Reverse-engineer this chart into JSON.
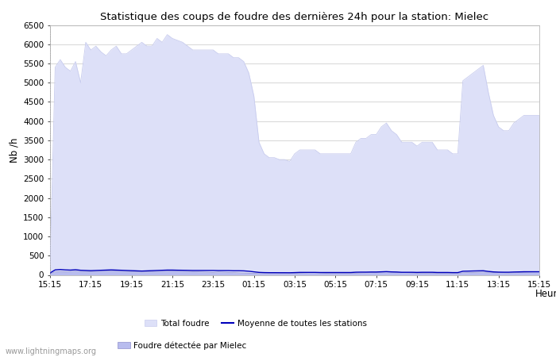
{
  "title": "Statistique des coups de foudre des dernières 24h pour la station: Mielec",
  "xlabel": "Heure",
  "ylabel": "Nb /h",
  "ylim": [
    0,
    6500
  ],
  "yticks": [
    0,
    500,
    1000,
    1500,
    2000,
    2500,
    3000,
    3500,
    4000,
    4500,
    5000,
    5500,
    6000,
    6500
  ],
  "xtick_labels": [
    "15:15",
    "17:15",
    "19:15",
    "21:15",
    "23:15",
    "01:15",
    "03:15",
    "05:15",
    "07:15",
    "09:15",
    "11:15",
    "13:15",
    "15:15"
  ],
  "bg_color": "#ffffff",
  "plot_bg_color": "#ffffff",
  "grid_color": "#d0d0d0",
  "total_foudre_color": "#dde0f8",
  "total_foudre_edge": "#c8ccee",
  "foudre_mielec_color": "#b8bcee",
  "foudre_mielec_edge": "#9090cc",
  "moyenne_color": "#0000bb",
  "watermark": "www.lightningmaps.org",
  "total_foudre": [
    200,
    5400,
    5600,
    5400,
    5300,
    5550,
    5000,
    6050,
    5850,
    5950,
    5800,
    5700,
    5850,
    5950,
    5750,
    5750,
    5850,
    5950,
    6050,
    5950,
    5950,
    6150,
    6050,
    6250,
    6150,
    6100,
    6050,
    5950,
    5850,
    5850,
    5850,
    5850,
    5850,
    5750,
    5750,
    5750,
    5650,
    5650,
    5550,
    5250,
    4650,
    3450,
    3150,
    3050,
    3050,
    3000,
    3000,
    2950,
    3150,
    3250,
    3250,
    3250,
    3250,
    3150,
    3150,
    3150,
    3150,
    3150,
    3150,
    3150,
    3450,
    3550,
    3550,
    3650,
    3650,
    3850,
    3950,
    3750,
    3650,
    3450,
    3450,
    3450,
    3350,
    3450,
    3450,
    3450,
    3250,
    3250,
    3250,
    3150,
    3150,
    5050,
    5150,
    5250,
    5350,
    5450,
    4750,
    4150,
    3850,
    3750,
    3750,
    3950,
    4050,
    4150,
    4150,
    4150,
    4150
  ],
  "foudre_mielec": [
    30,
    80,
    90,
    85,
    90,
    100,
    90,
    90,
    85,
    90,
    95,
    100,
    105,
    100,
    95,
    90,
    85,
    80,
    75,
    80,
    85,
    90,
    95,
    100,
    105,
    100,
    95,
    90,
    85,
    80,
    75,
    70,
    65,
    75,
    70,
    65,
    60,
    55,
    50,
    45,
    40,
    35,
    35,
    35,
    35,
    35,
    35,
    35,
    40,
    45,
    50,
    55,
    55,
    50,
    45,
    40,
    40,
    40,
    40,
    40,
    45,
    50,
    55,
    60,
    65,
    70,
    75,
    70,
    65,
    60,
    55,
    50,
    45,
    45,
    45,
    45,
    40,
    40,
    40,
    40,
    40,
    55,
    60,
    65,
    70,
    75,
    70,
    65,
    60,
    55,
    50,
    55,
    60,
    65,
    70,
    75,
    80
  ],
  "moyenne": [
    50,
    130,
    140,
    130,
    125,
    135,
    120,
    115,
    110,
    115,
    120,
    125,
    130,
    125,
    120,
    115,
    110,
    105,
    100,
    105,
    110,
    115,
    120,
    125,
    125,
    122,
    120,
    118,
    115,
    115,
    115,
    115,
    115,
    112,
    112,
    112,
    108,
    108,
    105,
    95,
    80,
    65,
    60,
    58,
    58,
    57,
    57,
    56,
    60,
    65,
    65,
    65,
    65,
    62,
    62,
    62,
    62,
    62,
    62,
    62,
    70,
    72,
    72,
    75,
    75,
    80,
    85,
    78,
    75,
    68,
    68,
    68,
    65,
    68,
    68,
    68,
    63,
    63,
    63,
    60,
    60,
    95,
    98,
    102,
    105,
    108,
    90,
    78,
    72,
    70,
    70,
    75,
    78,
    82,
    82,
    82,
    82
  ]
}
